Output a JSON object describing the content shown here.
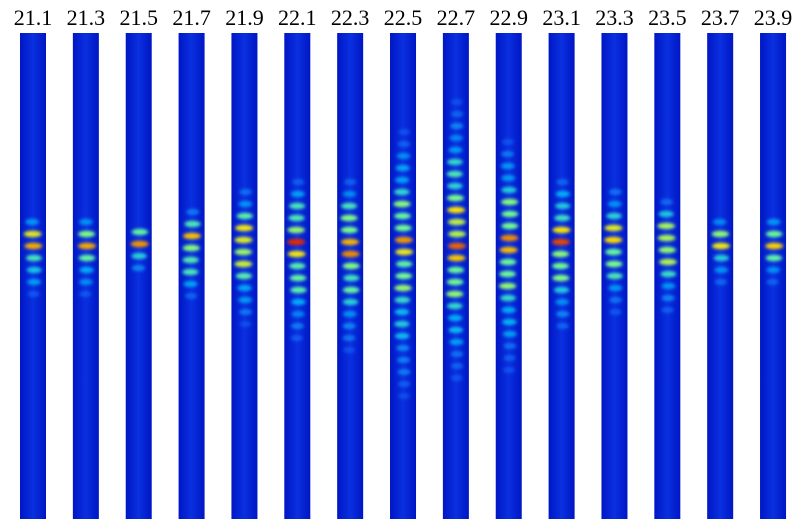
{
  "panels": [
    {
      "label": "21.1"
    },
    {
      "label": "21.3"
    },
    {
      "label": "21.5"
    },
    {
      "label": "21.7"
    },
    {
      "label": "21.9"
    },
    {
      "label": "22.1"
    },
    {
      "label": "22.3"
    },
    {
      "label": "22.5"
    },
    {
      "label": "22.7"
    },
    {
      "label": "22.9"
    },
    {
      "label": "23.1"
    },
    {
      "label": "23.3"
    },
    {
      "label": "23.5"
    },
    {
      "label": "23.7"
    },
    {
      "label": "23.9"
    }
  ]
}
